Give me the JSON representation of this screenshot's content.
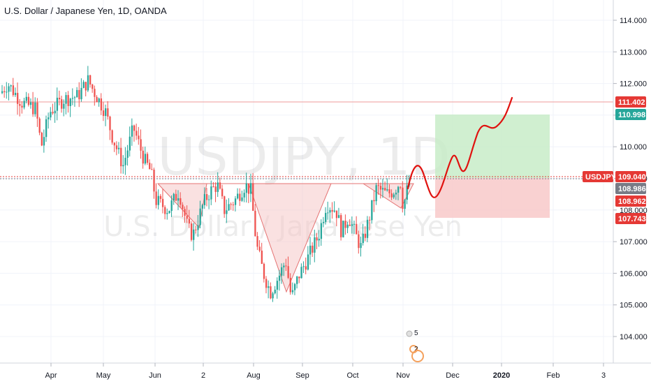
{
  "chart_data": {
    "type": "candlestick",
    "title": "U.S. Dollar / Japanese Yen, 1D, OANDA",
    "watermark_symbol": "USDJPY, 1D",
    "watermark_name": "U.S. Dollar / Japanese Yen",
    "y_ticks": [
      "104.000",
      "105.000",
      "106.000",
      "107.000",
      "108.000",
      "109.000",
      "110.000",
      "111.000",
      "112.000",
      "113.000",
      "114.000"
    ],
    "y_tick_values": [
      104,
      105,
      106,
      107,
      108,
      109,
      110,
      111,
      112,
      113,
      114
    ],
    "x_ticks": [
      "Apr",
      "May",
      "Jun",
      "2",
      "Aug",
      "Sep",
      "Oct",
      "Nov",
      "Dec",
      "2020",
      "Feb",
      "3"
    ],
    "ylim": [
      103.1,
      114.5
    ],
    "price_levels": {
      "resistance": 111.402,
      "target": 110.998,
      "last_price": 109.04,
      "entry": 108.986,
      "neckline": 108.962,
      "stop": 107.743
    },
    "tags": [
      {
        "label": "111.402",
        "value": 111.402,
        "color": "#e53935"
      },
      {
        "label": "110.998",
        "value": 110.998,
        "color": "#26a69a"
      },
      {
        "label": "USDJPY",
        "value": 109.04,
        "color": "#e53935"
      },
      {
        "label": "109.040",
        "value": 109.04,
        "color": "#e53935"
      },
      {
        "label": "108.986",
        "value": 108.986,
        "color": "#787b86"
      },
      {
        "label": "108.962",
        "value": 108.962,
        "color": "#e53935"
      },
      {
        "label": "107.743",
        "value": 107.743,
        "color": "#e53935"
      }
    ],
    "pattern": "inverse head and shoulders",
    "projection": "bullish path toward 111.4",
    "event_markers": [
      "5",
      "2"
    ],
    "colors": {
      "up": "#26a69a",
      "down": "#ef5350",
      "profit_zone": "#c8e6c9",
      "loss_zone": "#ffcdd2",
      "pattern_fill": "#fbe0e0",
      "projection": "#e0120f"
    }
  }
}
